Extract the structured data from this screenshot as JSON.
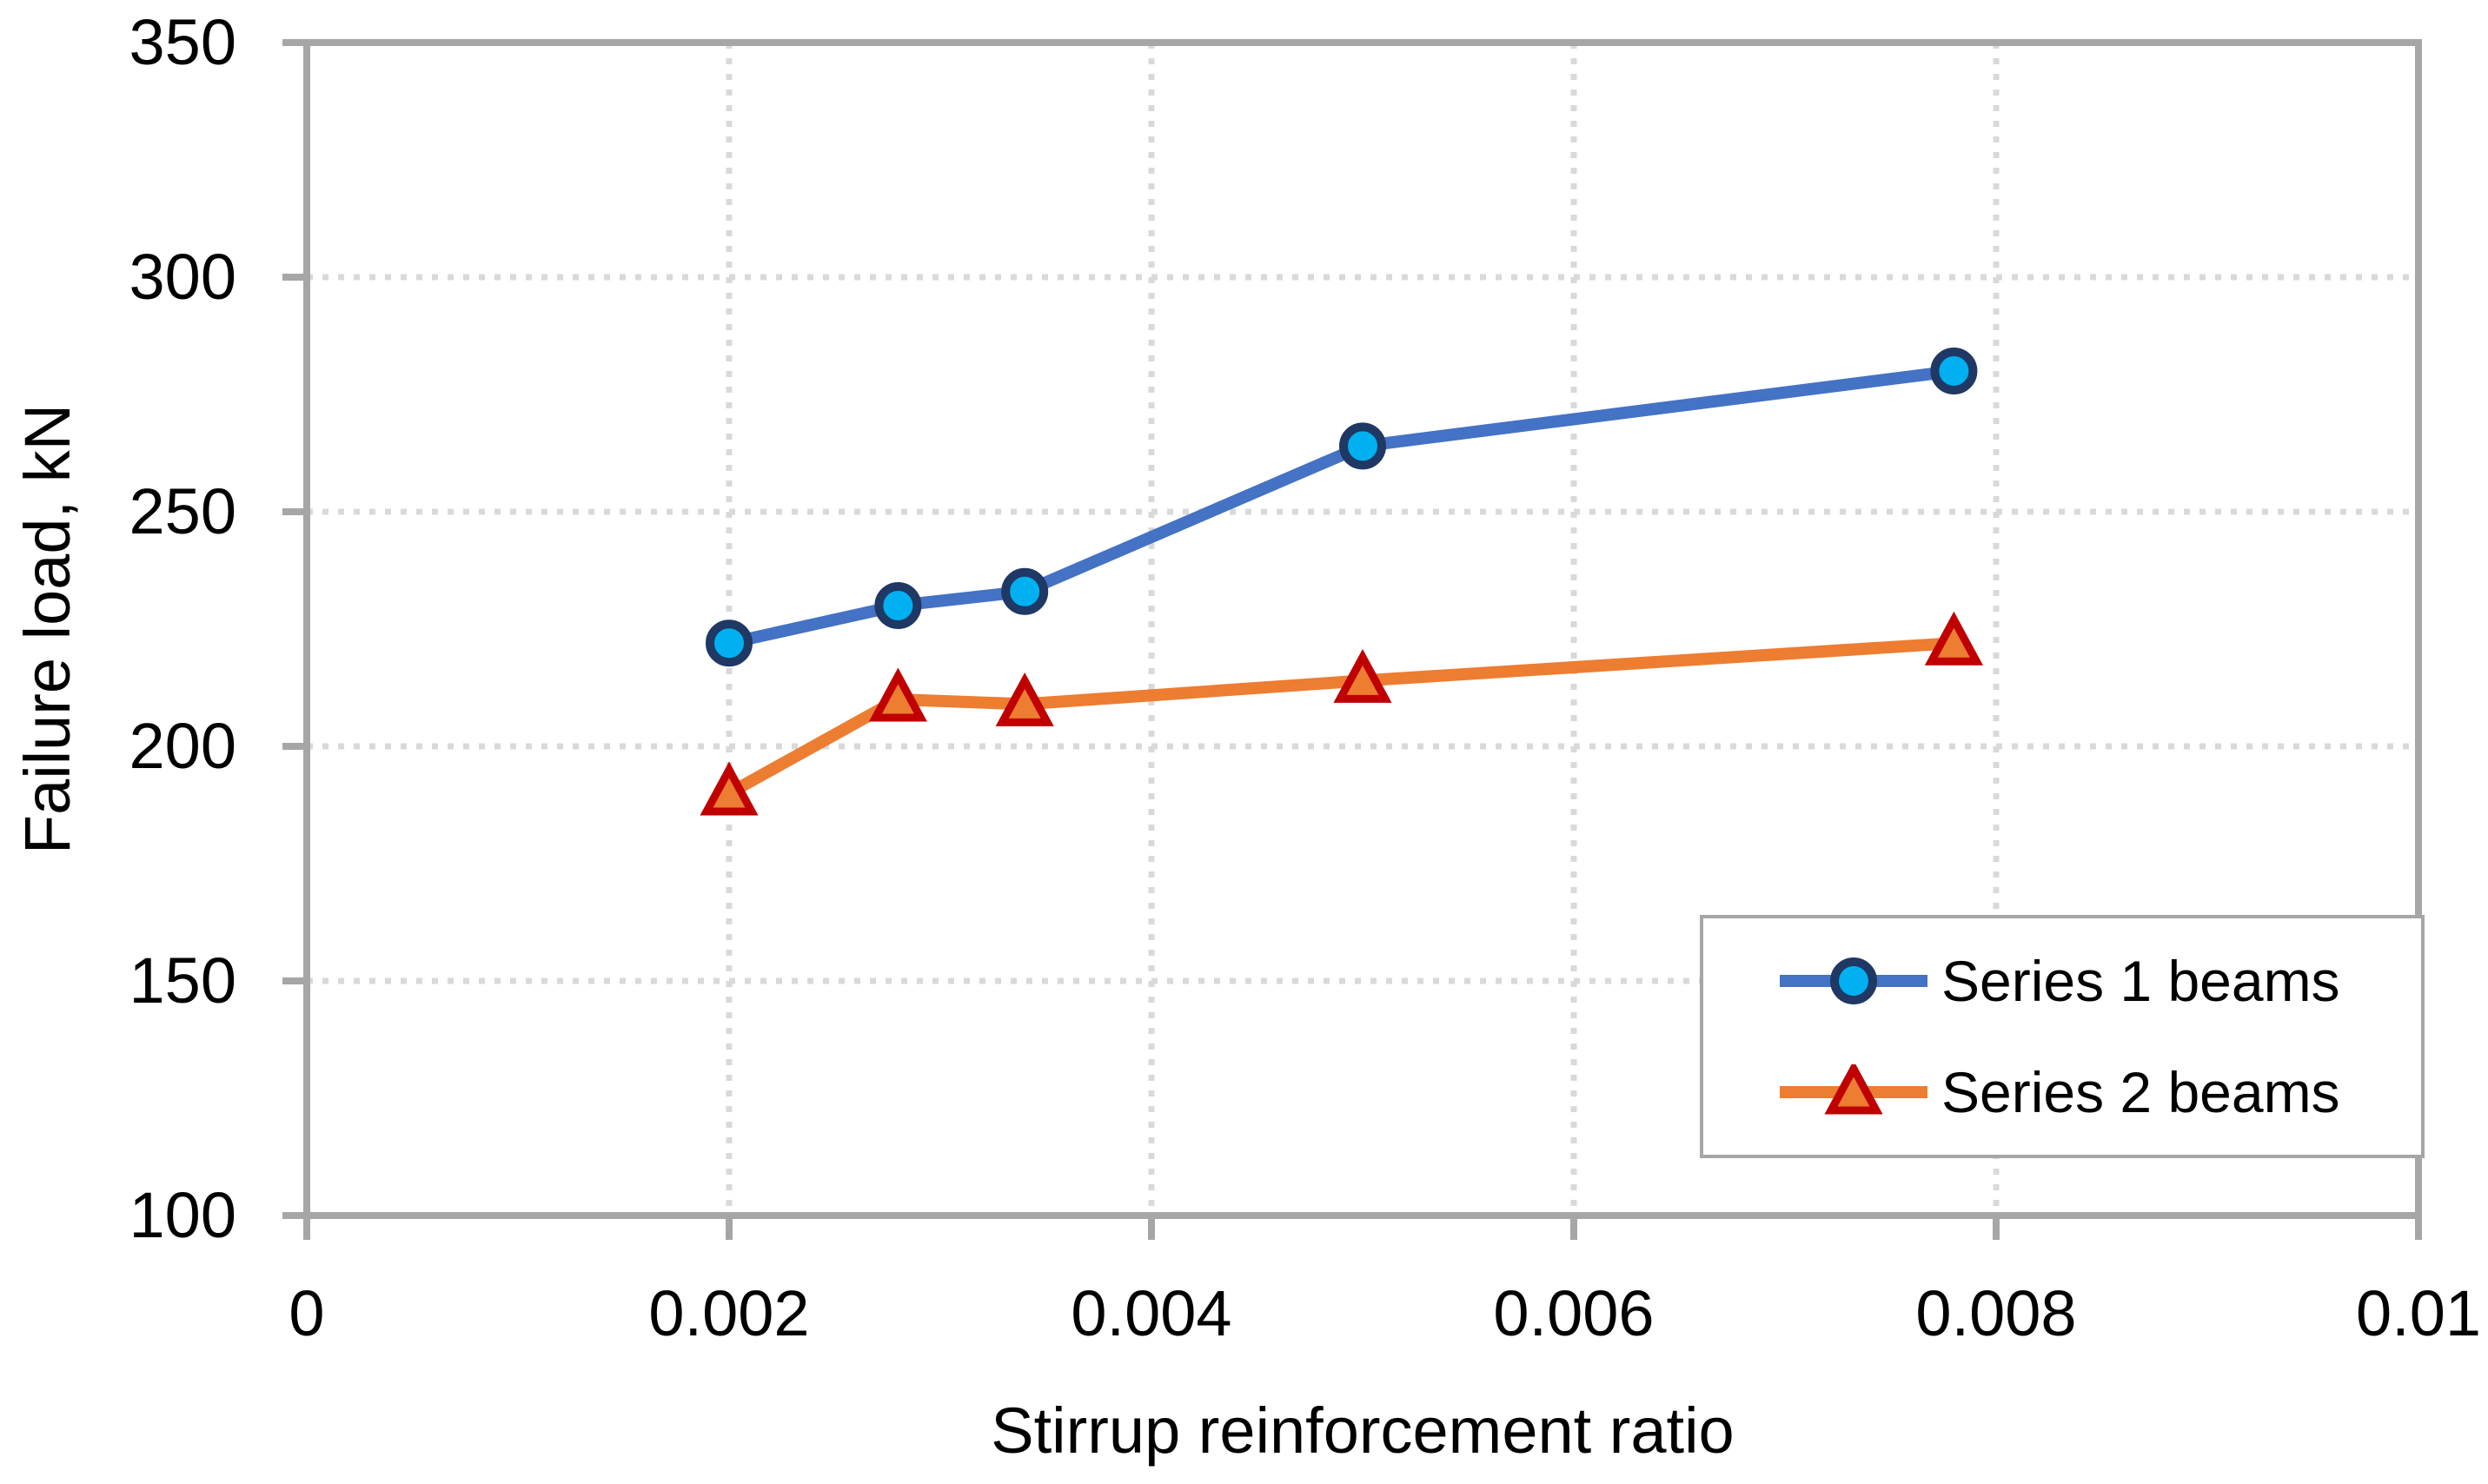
{
  "chart_data": {
    "type": "line",
    "title": "",
    "xlabel": "Stirrup reinforcement ratio",
    "ylabel": "Failure load, kN",
    "xlim": [
      0,
      0.01
    ],
    "ylim": [
      100,
      350
    ],
    "xticks": [
      0,
      0.002,
      0.004,
      0.006,
      0.008,
      0.01
    ],
    "xtick_labels": [
      "0",
      "0.002",
      "0.004",
      "0.006",
      "0.008",
      "0.01"
    ],
    "yticks": [
      100,
      150,
      200,
      250,
      300,
      350
    ],
    "ytick_labels": [
      "100",
      "150",
      "200",
      "250",
      "300",
      "350"
    ],
    "grid": "dotted",
    "legend_position": "inside-bottom-right",
    "x": [
      0.002,
      0.0028,
      0.0034,
      0.005,
      0.0078
    ],
    "series": [
      {
        "name": "Series 1 beams",
        "values": [
          222,
          230,
          233,
          264,
          280
        ],
        "line_color": "#4472C4",
        "marker": "circle",
        "marker_fill": "#00B0F0",
        "marker_border": "#1F3864"
      },
      {
        "name": "Series 2 beams",
        "values": [
          190,
          210,
          209,
          214,
          222
        ],
        "line_color": "#ED7D31",
        "marker": "triangle",
        "marker_fill": "#ED7D31",
        "marker_border": "#C00000"
      }
    ]
  },
  "colors": {
    "axis": "#A6A6A6",
    "grid": "#D9D9D9",
    "text": "#000000",
    "background": "#FFFFFF"
  }
}
